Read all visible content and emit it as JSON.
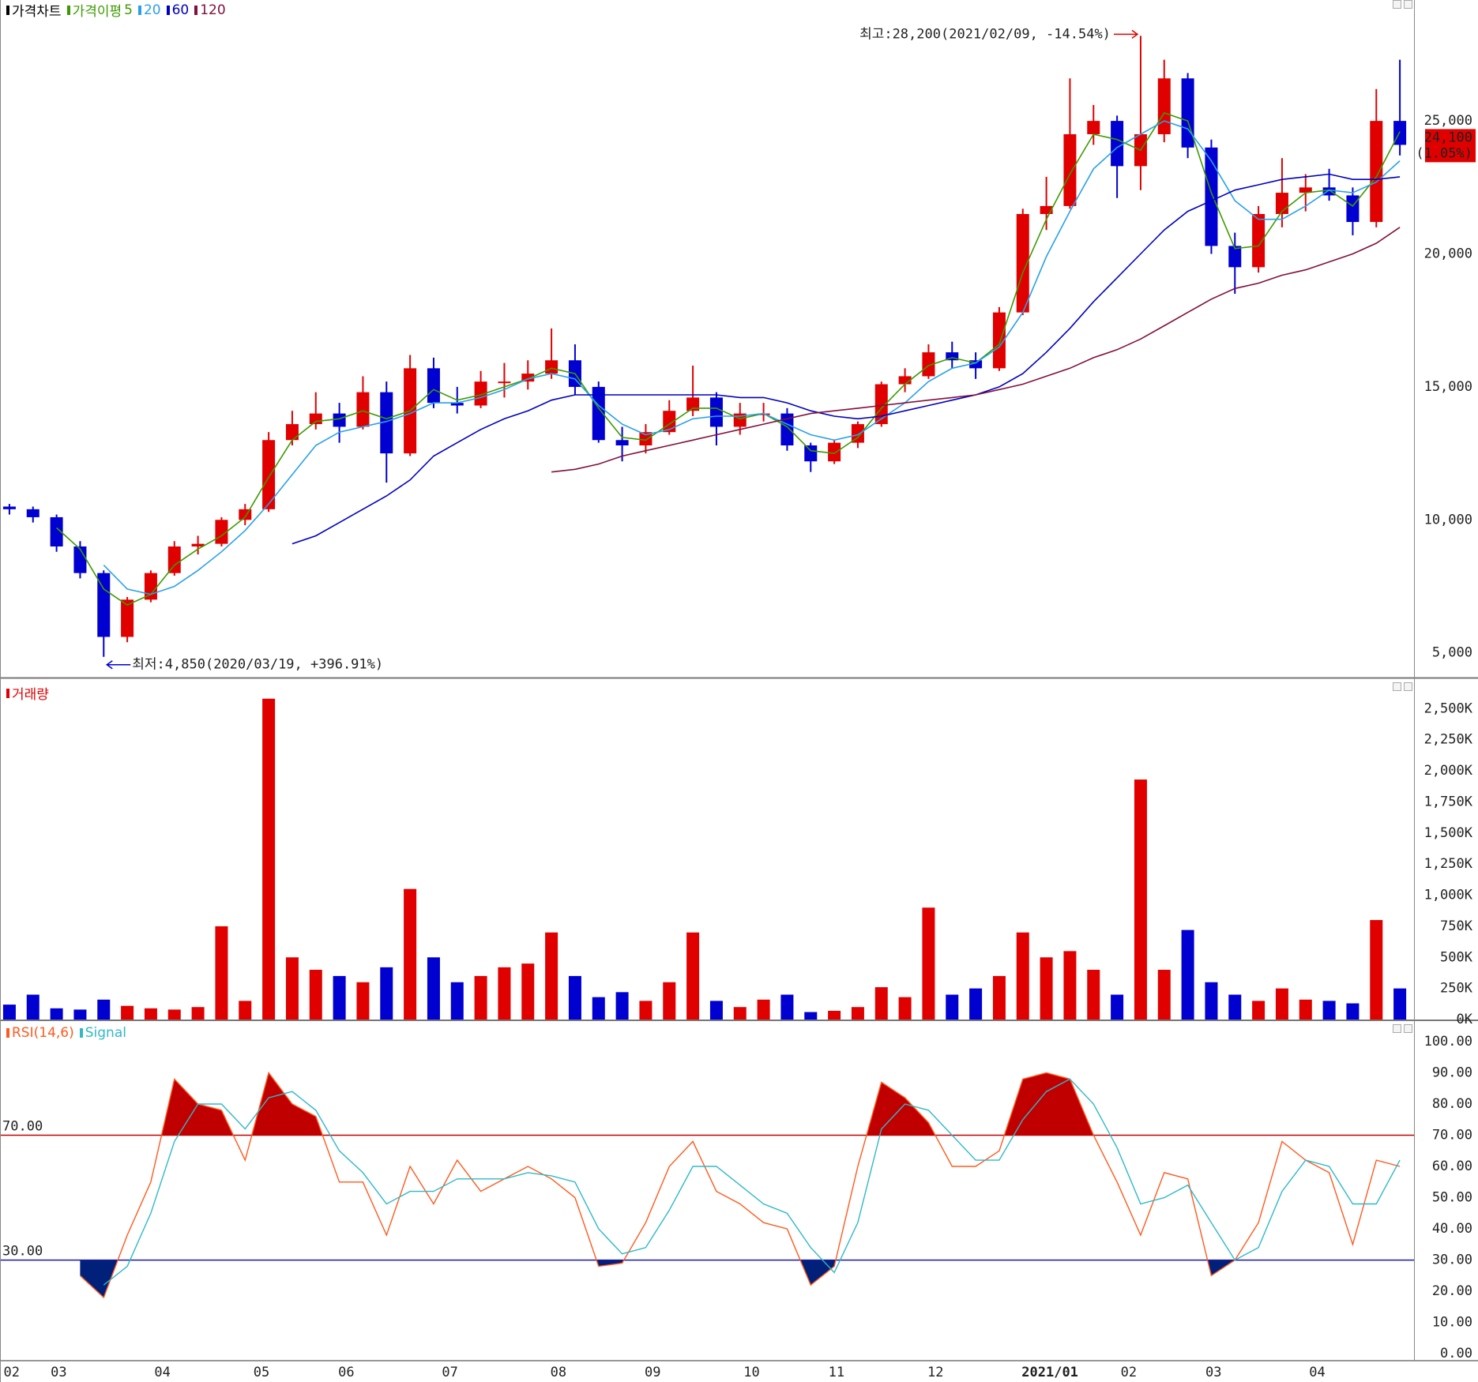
{
  "chart_data": [
    {
      "type": "candlestick",
      "title": "가격차트",
      "ma_label": "가격이평",
      "xlim": [
        0,
        300
      ],
      "x": [
        2,
        7,
        12,
        17,
        22,
        27,
        32,
        37,
        42,
        47,
        52,
        57,
        62,
        67,
        72,
        77,
        82,
        87,
        92,
        97,
        102,
        107,
        112,
        117,
        122,
        127,
        132,
        137,
        142,
        147,
        152,
        157,
        162,
        167,
        172,
        177,
        182,
        187,
        192,
        197,
        202,
        207,
        212,
        217,
        222,
        227,
        232,
        237,
        242,
        247,
        252,
        257,
        262,
        267,
        272,
        277,
        282,
        287,
        292,
        297
      ],
      "open": [
        10500,
        10400,
        10100,
        9000,
        8000,
        5600,
        7000,
        8000,
        9000,
        9100,
        10000,
        10400,
        13000,
        13600,
        14000,
        13500,
        14800,
        12500,
        15700,
        14400,
        14300,
        15200,
        15200,
        15500,
        16000,
        15000,
        13000,
        12800,
        13300,
        14100,
        14600,
        13500,
        14000,
        14000,
        12800,
        12200,
        12900,
        13600,
        15100,
        15400,
        16300,
        16000,
        15700,
        17800,
        21500,
        21800,
        24500,
        25000,
        23300,
        24500,
        26600,
        24000,
        20300,
        19500,
        21500,
        22300,
        22500,
        22200,
        21200,
        25000
      ],
      "high": [
        10600,
        10500,
        10200,
        9200,
        8100,
        7100,
        8100,
        9200,
        9400,
        10100,
        10600,
        13300,
        14100,
        14800,
        14400,
        15400,
        15200,
        16200,
        16100,
        15000,
        15600,
        15900,
        16000,
        17200,
        16600,
        15200,
        13500,
        13600,
        14500,
        15800,
        14800,
        14400,
        14400,
        14200,
        12900,
        13000,
        13700,
        15200,
        15700,
        16600,
        16700,
        16300,
        18000,
        21700,
        22900,
        26600,
        25600,
        25200,
        28200,
        27300,
        26800,
        24300,
        20800,
        21800,
        23600,
        23000,
        23200,
        22500,
        26200,
        27300
      ],
      "low": [
        10200,
        9900,
        8800,
        7800,
        4850,
        5400,
        6900,
        7900,
        8700,
        9000,
        9800,
        10300,
        12800,
        13400,
        12900,
        13400,
        11400,
        12400,
        14200,
        14000,
        14200,
        14600,
        14900,
        15300,
        14700,
        12900,
        12200,
        12500,
        13200,
        13900,
        12800,
        13200,
        13700,
        12600,
        11800,
        12100,
        12700,
        13500,
        14800,
        15300,
        15700,
        15300,
        15600,
        17700,
        20900,
        21700,
        24100,
        22100,
        22400,
        24200,
        23600,
        20000,
        18500,
        19300,
        21000,
        21600,
        22000,
        20700,
        21000,
        23700
      ],
      "close": [
        10400,
        10100,
        9000,
        8000,
        5600,
        7000,
        8000,
        9000,
        9100,
        10000,
        10400,
        13000,
        13600,
        14000,
        13500,
        14800,
        12500,
        15700,
        14400,
        14300,
        15200,
        15200,
        15500,
        16000,
        15000,
        13000,
        12800,
        13300,
        14100,
        14600,
        13500,
        14000,
        14000,
        12800,
        12200,
        12900,
        13600,
        15100,
        15400,
        16300,
        16000,
        15700,
        17800,
        21500,
        21800,
        24500,
        25000,
        23300,
        24500,
        26600,
        24000,
        20300,
        19500,
        21500,
        22300,
        22500,
        22200,
        21200,
        25000,
        24100
      ],
      "up_color": "#e00000",
      "down_color": "#0000d0",
      "series": [
        {
          "name": "5",
          "color": "#3c9a00",
          "values": [
            null,
            null,
            9700,
            8900,
            7400,
            6800,
            7200,
            8300,
            8900,
            9400,
            10100,
            11600,
            13000,
            13700,
            13800,
            14100,
            13800,
            14100,
            14900,
            14500,
            14700,
            15000,
            15300,
            15700,
            15500,
            14200,
            13100,
            13000,
            13600,
            14200,
            14200,
            13800,
            14000,
            13500,
            12600,
            12500,
            13100,
            14200,
            15100,
            15800,
            16100,
            15900,
            16600,
            19300,
            21300,
            23000,
            24500,
            24300,
            23900,
            25300,
            25000,
            22300,
            20200,
            20300,
            21600,
            22300,
            22400,
            21800,
            22900,
            24600
          ]
        },
        {
          "name": "20",
          "color": "#2aa0e8",
          "values": [
            null,
            null,
            null,
            null,
            8300,
            7400,
            7200,
            7500,
            8100,
            8800,
            9600,
            10600,
            11700,
            12800,
            13300,
            13500,
            13700,
            14000,
            14400,
            14400,
            14600,
            14900,
            15300,
            15500,
            15300,
            14300,
            13600,
            13200,
            13400,
            13800,
            13900,
            13900,
            14000,
            13600,
            13200,
            13000,
            13200,
            13800,
            14400,
            15200,
            15700,
            15900,
            16500,
            17800,
            19900,
            21600,
            23200,
            24000,
            24500,
            25000,
            24700,
            23500,
            22000,
            21300,
            21300,
            21800,
            22400,
            22300,
            22700,
            23500
          ]
        },
        {
          "name": "60",
          "color": "#0000c0",
          "values": [
            null,
            null,
            null,
            null,
            null,
            null,
            null,
            null,
            null,
            null,
            null,
            null,
            9100,
            9400,
            9900,
            10400,
            10900,
            11500,
            12400,
            12900,
            13400,
            13800,
            14100,
            14500,
            14700,
            14700,
            14700,
            14700,
            14700,
            14700,
            14700,
            14600,
            14600,
            14400,
            14100,
            13900,
            13800,
            13900,
            14100,
            14300,
            14500,
            14700,
            15000,
            15500,
            16300,
            17200,
            18200,
            19100,
            20000,
            20900,
            21600,
            22000,
            22400,
            22600,
            22800,
            22900,
            23000,
            22800,
            22800,
            22900
          ]
        },
        {
          "name": "120",
          "color": "#80103c",
          "values": [
            null,
            null,
            null,
            null,
            null,
            null,
            null,
            null,
            null,
            null,
            null,
            null,
            null,
            null,
            null,
            null,
            null,
            null,
            null,
            null,
            null,
            null,
            null,
            11800,
            11900,
            12100,
            12400,
            12600,
            12800,
            13000,
            13200,
            13400,
            13600,
            13800,
            14000,
            14100,
            14200,
            14300,
            14400,
            14500,
            14600,
            14700,
            14900,
            15100,
            15400,
            15700,
            16100,
            16400,
            16800,
            17300,
            17800,
            18300,
            18700,
            18900,
            19200,
            19400,
            19700,
            20000,
            20400,
            21000
          ]
        }
      ],
      "ylim": [
        4100,
        29250
      ],
      "yticks": [
        {
          "value": 5000,
          "label": "5,000"
        },
        {
          "value": 10000,
          "label": "10,000"
        },
        {
          "value": 15000,
          "label": "15,000"
        },
        {
          "value": 20000,
          "label": "20,000"
        },
        {
          "value": 25000,
          "label": "25,000"
        }
      ],
      "grid": true,
      "last_label": "24,100",
      "last_change": "(1.05%)",
      "annotations": [
        {
          "text": "최고:28,200(2021/02/09, -14.54%)",
          "x": 242,
          "y": 28200,
          "side": "left"
        },
        {
          "text": "최저:4,850(2020/03/19, +396.91%)",
          "x": 22,
          "y": 4850,
          "side": "right"
        }
      ]
    },
    {
      "type": "bar",
      "title": "거래량",
      "title_color": "#e00000",
      "xlim": [
        0,
        300
      ],
      "x": [
        2,
        7,
        12,
        17,
        22,
        27,
        32,
        37,
        42,
        47,
        52,
        57,
        62,
        67,
        72,
        77,
        82,
        87,
        92,
        97,
        102,
        107,
        112,
        117,
        122,
        127,
        132,
        137,
        142,
        147,
        152,
        157,
        162,
        167,
        172,
        177,
        182,
        187,
        192,
        197,
        202,
        207,
        212,
        217,
        222,
        227,
        232,
        237,
        242,
        247,
        252,
        257,
        262,
        267,
        272,
        277,
        282,
        287,
        292,
        297
      ],
      "values": [
        120000,
        200000,
        90000,
        80000,
        160000,
        110000,
        90000,
        80000,
        100000,
        750000,
        150000,
        2580000,
        500000,
        400000,
        350000,
        300000,
        420000,
        1050000,
        500000,
        300000,
        350000,
        420000,
        450000,
        700000,
        350000,
        180000,
        220000,
        150000,
        300000,
        700000,
        150000,
        100000,
        160000,
        200000,
        60000,
        70000,
        100000,
        260000,
        180000,
        900000,
        200000,
        250000,
        350000,
        700000,
        500000,
        550000,
        400000,
        200000,
        1930000,
        400000,
        720000,
        300000,
        200000,
        150000,
        250000,
        160000,
        150000,
        130000,
        800000,
        250000
      ],
      "ylim": [
        0,
        2680000
      ],
      "yticks": [
        {
          "value": 0,
          "label": "0K"
        },
        {
          "value": 250000,
          "label": "250K"
        },
        {
          "value": 500000,
          "label": "500K"
        },
        {
          "value": 750000,
          "label": "750K"
        },
        {
          "value": 1000000,
          "label": "1,000K"
        },
        {
          "value": 1250000,
          "label": "1,250K"
        },
        {
          "value": 1500000,
          "label": "1,500K"
        },
        {
          "value": 1750000,
          "label": "1,750K"
        },
        {
          "value": 2000000,
          "label": "2,000K"
        },
        {
          "value": 2250000,
          "label": "2,250K"
        },
        {
          "value": 2500000,
          "label": "2,500K"
        }
      ],
      "grid": true
    },
    {
      "type": "line",
      "xlim": [
        0,
        300
      ],
      "x": [
        2,
        7,
        12,
        17,
        22,
        27,
        32,
        37,
        42,
        47,
        52,
        57,
        62,
        67,
        72,
        77,
        82,
        87,
        92,
        97,
        102,
        107,
        112,
        117,
        122,
        127,
        132,
        137,
        142,
        147,
        152,
        157,
        162,
        167,
        172,
        177,
        182,
        187,
        192,
        197,
        202,
        207,
        212,
        217,
        222,
        227,
        232,
        237,
        242,
        247,
        252,
        257,
        262,
        267,
        272,
        277,
        282,
        287,
        292,
        297
      ],
      "series": [
        {
          "name": "RSI(14,6)",
          "color": "#ff5a1e",
          "values": [
            null,
            null,
            null,
            25,
            18,
            38,
            55,
            88,
            80,
            78,
            62,
            90,
            80,
            76,
            55,
            55,
            38,
            60,
            48,
            62,
            52,
            56,
            60,
            56,
            50,
            28,
            29,
            42,
            60,
            68,
            52,
            48,
            42,
            40,
            22,
            28,
            60,
            87,
            82,
            74,
            60,
            60,
            65,
            88,
            90,
            88,
            70,
            55,
            38,
            58,
            56,
            25,
            30,
            42,
            68,
            62,
            58,
            35,
            62,
            60
          ]
        },
        {
          "name": "Signal",
          "color": "#30b8c8",
          "values": [
            null,
            null,
            null,
            null,
            22,
            28,
            45,
            68,
            80,
            80,
            72,
            82,
            84,
            78,
            65,
            58,
            48,
            52,
            52,
            56,
            56,
            56,
            58,
            57,
            55,
            40,
            32,
            34,
            46,
            60,
            60,
            54,
            48,
            45,
            34,
            26,
            42,
            72,
            80,
            78,
            70,
            62,
            62,
            75,
            84,
            88,
            80,
            66,
            48,
            50,
            54,
            42,
            30,
            34,
            52,
            62,
            60,
            48,
            48,
            62
          ]
        }
      ],
      "ref_lines": [
        {
          "value": 70,
          "label": "70.00",
          "color": "#c00000",
          "fill": "#c00000",
          "side": "above"
        },
        {
          "value": 30,
          "label": "30.00",
          "color": "#1a1aa0",
          "fill": "#00207a",
          "side": "below"
        }
      ],
      "ylim": [
        -2,
        105
      ],
      "yticks": [
        {
          "value": 0,
          "label": "0.00"
        },
        {
          "value": 10,
          "label": "10.00"
        },
        {
          "value": 20,
          "label": "20.00"
        },
        {
          "value": 30,
          "label": "30.00"
        },
        {
          "value": 40,
          "label": "40.00"
        },
        {
          "value": 50,
          "label": "50.00"
        },
        {
          "value": 60,
          "label": "60.00"
        },
        {
          "value": 70,
          "label": "70.00"
        },
        {
          "value": 80,
          "label": "80.00"
        },
        {
          "value": 90,
          "label": "90.00"
        },
        {
          "value": 100,
          "label": "100.00"
        }
      ],
      "xticks": [
        {
          "value": 0,
          "label": "02"
        },
        {
          "value": 10,
          "label": "03"
        },
        {
          "value": 32,
          "label": "04"
        },
        {
          "value": 53,
          "label": "05"
        },
        {
          "value": 71,
          "label": "06"
        },
        {
          "value": 93,
          "label": "07"
        },
        {
          "value": 116,
          "label": "08"
        },
        {
          "value": 136,
          "label": "09"
        },
        {
          "value": 157,
          "label": "10"
        },
        {
          "value": 175,
          "label": "11"
        },
        {
          "value": 196,
          "label": "12"
        },
        {
          "value": 217,
          "label": "2021/01"
        },
        {
          "value": 237,
          "label": "02"
        },
        {
          "value": 255,
          "label": "03"
        },
        {
          "value": 277,
          "label": "04"
        }
      ],
      "grid": true
    }
  ]
}
